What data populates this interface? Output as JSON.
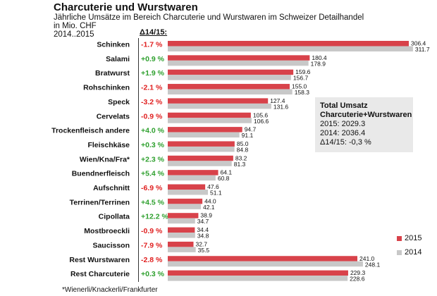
{
  "header": {
    "title": "Charcuterie und Wurstwaren",
    "subtitle": "Jährliche Umsätze im Bereich Charcuterie und Wurstwaren im Schweizer Detailhandel",
    "unit": "in Mio. CHF",
    "period": "2014..2015",
    "delta_label": "Δ14/15:"
  },
  "infobox": {
    "line1": "Total Umsatz",
    "line2": "Charcuterie+Wurstwaren",
    "line3": "2015: 2029.3",
    "line4": "2014: 2036.4",
    "line5": "Δ14/15: -0,3 %"
  },
  "legend": {
    "s2015": "2015",
    "s2014": "2014"
  },
  "footnote": "*Wienerli/Knackerli/Frankfurter",
  "colors": {
    "s2015": "#d8424a",
    "s2014": "#c8c8c8",
    "neg": "#e02020",
    "pos": "#2ea02e"
  },
  "chart_data": {
    "type": "bar",
    "orientation": "horizontal",
    "title": "Charcuterie und Wurstwaren",
    "unit": "Mio. CHF",
    "categories": [
      "Schinken",
      "Salami",
      "Bratwurst",
      "Rohschinken",
      "Speck",
      "Cervelats",
      "Trockenfleisch andere",
      "Fleischkäse",
      "Wien/Kna/Fra*",
      "Buendnerfleisch",
      "Aufschnitt",
      "Terrinen/Terrinen",
      "Cipollata",
      "Mostbroeckli",
      "Saucisson",
      "Rest Wurstwaren",
      "Rest Charcuterie"
    ],
    "series": [
      {
        "name": "2015",
        "values": [
          306.4,
          180.4,
          159.6,
          155.0,
          127.4,
          105.6,
          94.7,
          85.0,
          83.2,
          64.1,
          47.6,
          44.0,
          38.9,
          34.4,
          32.7,
          241.0,
          229.3
        ]
      },
      {
        "name": "2014",
        "values": [
          311.7,
          178.9,
          156.7,
          158.3,
          131.6,
          106.6,
          91.1,
          84.8,
          81.3,
          60.8,
          51.1,
          42.1,
          34.7,
          34.8,
          35.5,
          248.1,
          228.6
        ]
      }
    ],
    "delta": [
      "-1.7 %",
      "+0.9 %",
      "+1.9 %",
      "-2.1 %",
      "-3.2 %",
      "-0.9 %",
      "+4.0 %",
      "+0.3 %",
      "+2.3 %",
      "+5.4 %",
      "-6.9 %",
      "+4.5 %",
      "+12.2 %",
      "-0.9 %",
      "-7.9 %",
      "-2.8 %",
      "+0.3 %"
    ],
    "labels_2015": [
      "306.4",
      "180.4",
      "159.6",
      "155.0",
      "127.4",
      "105.6",
      "94.7",
      "85.0",
      "83.2",
      "64.1",
      "47.6",
      "44.0",
      "38.9",
      "34.4",
      "32.7",
      "241.0",
      "229.3"
    ],
    "labels_2014": [
      "311.7",
      "178.9",
      "156.7",
      "158.3",
      "131.6",
      "106.6",
      "91.1",
      "84.8",
      "81.3",
      "60.8",
      "51.1",
      "42.1",
      "34.7",
      "34.8",
      "35.5",
      "248.1",
      "228.6"
    ],
    "xlim": [
      0,
      320
    ]
  }
}
